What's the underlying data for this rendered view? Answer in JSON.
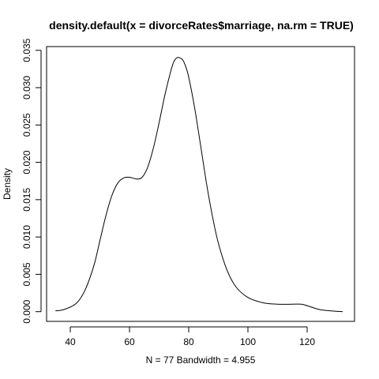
{
  "chart_data": {
    "type": "line",
    "title": "density.default(x = divorceRates$marriage, na.rm = TRUE)",
    "xlabel": "N = 77   Bandwidth = 4.955",
    "ylabel": "Density",
    "xlim": [
      32,
      136
    ],
    "ylim": [
      -0.0013,
      0.0355
    ],
    "x_ticks": [
      40,
      60,
      80,
      100,
      120
    ],
    "x_tick_labels": [
      "40",
      "60",
      "80",
      "100",
      "120"
    ],
    "y_ticks": [
      0.0,
      0.005,
      0.01,
      0.015,
      0.02,
      0.025,
      0.03,
      0.035
    ],
    "y_tick_labels": [
      "0.000",
      "0.005",
      "0.010",
      "0.015",
      "0.020",
      "0.025",
      "0.030",
      "0.035"
    ],
    "grid": false,
    "legend": "none",
    "line_color": "#000000",
    "series": [
      {
        "x": [
          35,
          38,
          42,
          45,
          48,
          50,
          52,
          54,
          56,
          58,
          60,
          62,
          64,
          66,
          68,
          70,
          72,
          74,
          75,
          76,
          77,
          78,
          79,
          80,
          82,
          84,
          86,
          88,
          90,
          93,
          96,
          100,
          105,
          110,
          115,
          118,
          120,
          124,
          128,
          132
        ],
        "y": [
          0.0001,
          0.0003,
          0.0011,
          0.0029,
          0.0062,
          0.0095,
          0.0128,
          0.0155,
          0.0172,
          0.0179,
          0.018,
          0.0178,
          0.0179,
          0.0192,
          0.0218,
          0.0253,
          0.0291,
          0.0323,
          0.0335,
          0.034,
          0.034,
          0.0337,
          0.0328,
          0.0314,
          0.0273,
          0.0223,
          0.0172,
          0.0128,
          0.0092,
          0.0055,
          0.0033,
          0.0019,
          0.0012,
          0.001,
          0.001,
          0.001,
          0.0008,
          0.0003,
          0.0001,
          0.0
        ]
      }
    ]
  }
}
